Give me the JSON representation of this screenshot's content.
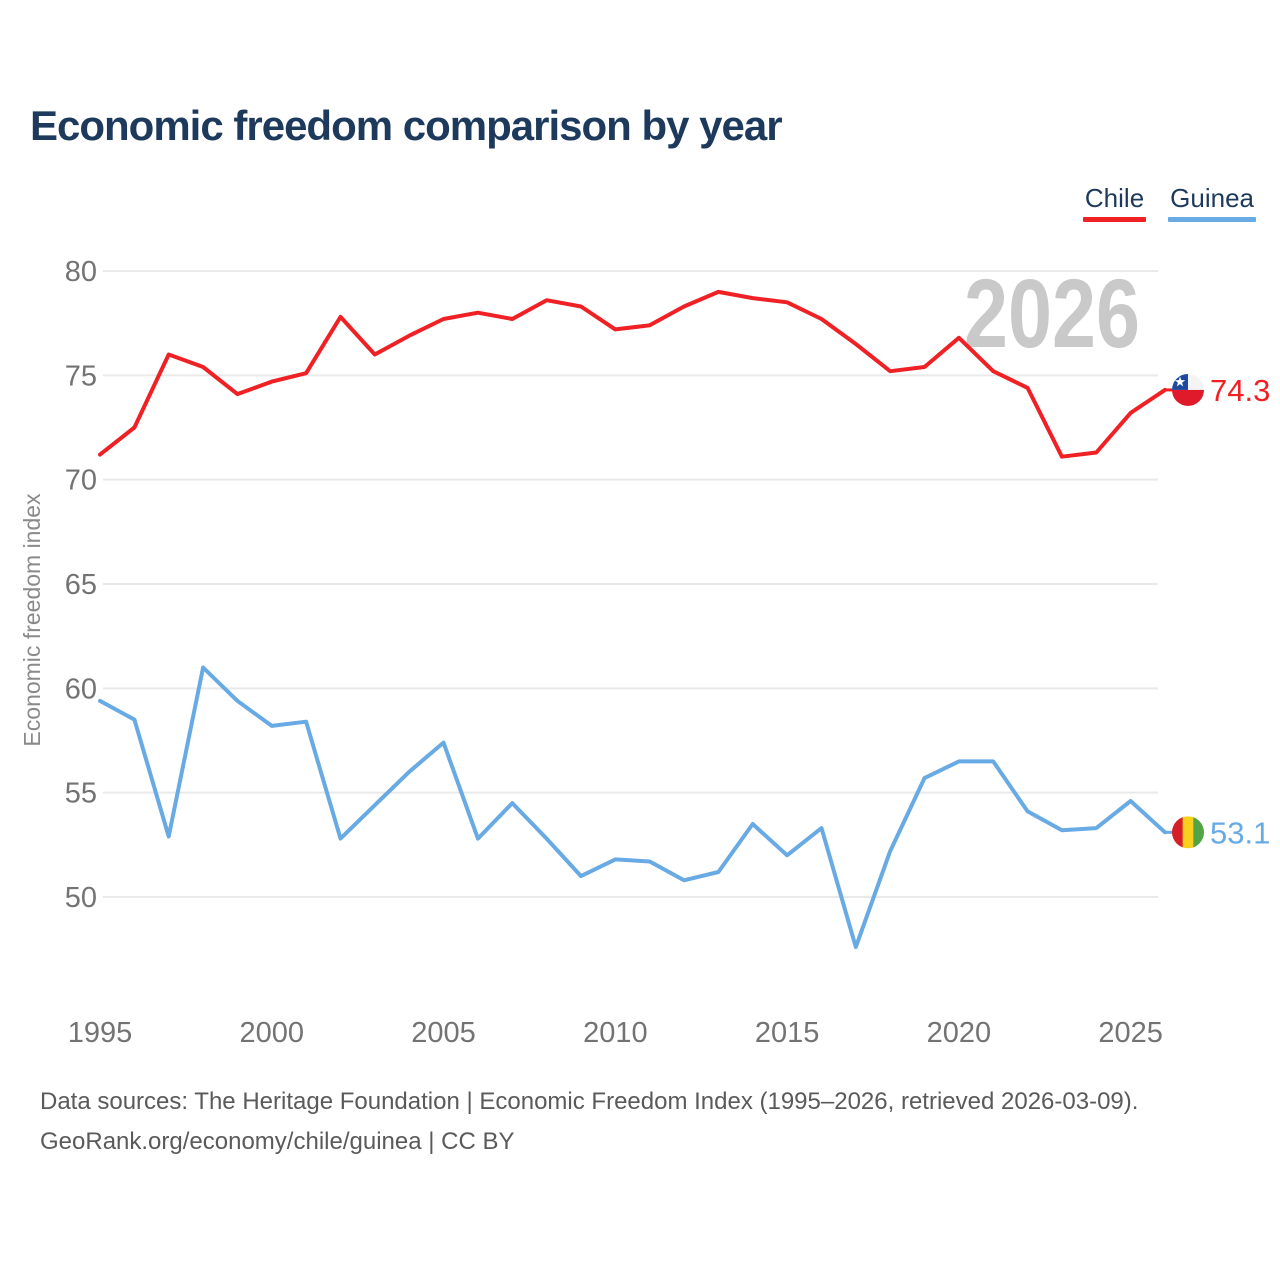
{
  "title": "Economic freedom comparison by year",
  "watermark": "2026",
  "legend": {
    "items": [
      {
        "label": "Chile",
        "color": "#ef2124"
      },
      {
        "label": "Guinea",
        "color": "#68aae3"
      }
    ]
  },
  "y_axis": {
    "label": "Economic freedom index",
    "ticks": [
      50,
      55,
      60,
      65,
      70,
      75,
      80
    ]
  },
  "x_axis": {
    "ticks": [
      1995,
      2000,
      2005,
      2010,
      2015,
      2020,
      2025
    ]
  },
  "chart_data": {
    "type": "line",
    "title": "Economic freedom comparison by year",
    "ylabel": "Economic freedom index",
    "xlim": [
      1995,
      2026
    ],
    "ylim": [
      47,
      81
    ],
    "grid": "horizontal",
    "legend_position": "top-right",
    "x": [
      1995,
      1996,
      1997,
      1998,
      1999,
      2000,
      2001,
      2002,
      2003,
      2004,
      2005,
      2006,
      2007,
      2008,
      2009,
      2010,
      2011,
      2012,
      2013,
      2014,
      2015,
      2016,
      2017,
      2018,
      2019,
      2020,
      2021,
      2022,
      2023,
      2024,
      2025,
      2026
    ],
    "series": [
      {
        "name": "Chile",
        "color": "#ef2124",
        "end_label": "74.3",
        "values": [
          71.2,
          72.5,
          76.0,
          75.4,
          74.1,
          74.7,
          75.1,
          77.8,
          76.0,
          76.9,
          77.7,
          78.0,
          77.7,
          78.6,
          78.3,
          77.2,
          77.4,
          78.3,
          79.0,
          78.7,
          78.5,
          77.7,
          76.5,
          75.2,
          75.4,
          76.8,
          75.2,
          74.4,
          71.1,
          71.3,
          73.2,
          74.3
        ],
        "flag": "chile",
        "flag_colors": {
          "blue": "#1f49a0",
          "white": "#f4f4f4",
          "red": "#e01a2b"
        }
      },
      {
        "name": "Guinea",
        "color": "#68aae3",
        "end_label": "53.1",
        "values": [
          59.4,
          58.5,
          52.9,
          61.0,
          59.4,
          58.2,
          58.4,
          52.8,
          54.4,
          56.0,
          57.4,
          52.8,
          54.5,
          52.8,
          51.0,
          51.8,
          51.7,
          50.8,
          51.2,
          53.5,
          52.0,
          53.3,
          47.6,
          52.2,
          55.7,
          56.5,
          56.5,
          54.1,
          53.2,
          53.3,
          54.6,
          53.1
        ],
        "flag": "guinea",
        "flag_colors": {
          "red": "#d62027",
          "yellow": "#f7d11e",
          "green": "#52a447"
        }
      }
    ]
  },
  "footer": {
    "line1": "Data sources: The Heritage Foundation | Economic Freedom Index (1995–2026, retrieved 2026-03-09).",
    "line2": "GeoRank.org/economy/chile/guinea | CC BY"
  }
}
